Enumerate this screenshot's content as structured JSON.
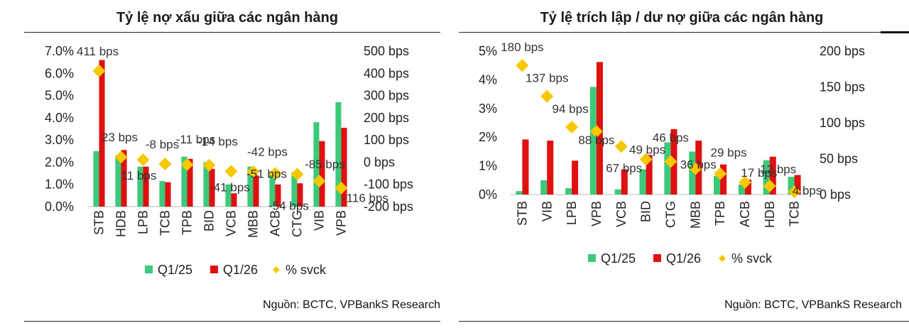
{
  "chart_data": [
    {
      "type": "bar",
      "title": "Tỷ lệ nợ xấu giữa các ngân hàng",
      "categories": [
        "STB",
        "HDB",
        "LPB",
        "TCB",
        "TPB",
        "BID",
        "VCB",
        "MBB",
        "ACB",
        "CTG",
        "VIB",
        "VPB"
      ],
      "series": [
        {
          "name": "Q1/25",
          "color": "#3cc97a",
          "axis": "left",
          "values": [
            2.5,
            2.3,
            1.8,
            1.15,
            2.25,
            2.0,
            1.0,
            1.8,
            1.55,
            1.55,
            3.8,
            4.7
          ]
        },
        {
          "name": "Q1/26",
          "color": "#e01010",
          "axis": "left",
          "values": [
            6.6,
            2.55,
            1.8,
            1.1,
            2.15,
            1.7,
            0.6,
            1.4,
            1.0,
            1.05,
            2.95,
            3.55
          ]
        },
        {
          "name": "% svck",
          "color": "#f5c800",
          "axis": "right",
          "marker": "diamond",
          "values": [
            411,
            23,
            11,
            -8,
            -11,
            -14,
            -41,
            -42,
            -51,
            -54,
            -85,
            -116
          ]
        }
      ],
      "data_labels": [
        "411 bps",
        "23 bps",
        "11 bps",
        "-8 bps",
        "-11 bps",
        "-14 bps",
        "-41 bps",
        "-42 bps",
        "-51 bps",
        "-54 bps",
        "-85 bps",
        "-116 bps"
      ],
      "ylim_left": [
        0,
        7
      ],
      "yticks_left": [
        "0.0%",
        "1.0%",
        "2.0%",
        "3.0%",
        "4.0%",
        "5.0%",
        "6.0%",
        "7.0%"
      ],
      "ylim_right": [
        -200,
        500
      ],
      "yticks_right": [
        "-200 bps",
        "-100 bps",
        "0 bps",
        "100 bps",
        "200 bps",
        "300 bps",
        "400 bps",
        "500 bps"
      ],
      "legend_position": "bottom",
      "source": "Nguồn: BCTC, VPBankS Research"
    },
    {
      "type": "bar",
      "title": "Tỷ lệ trích lập / dư nợ giữa các ngân hàng",
      "categories": [
        "STB",
        "VIB",
        "LPB",
        "VPB",
        "VCB",
        "BID",
        "CTG",
        "MBB",
        "TPB",
        "ACB",
        "HDB",
        "TCB"
      ],
      "series": [
        {
          "name": "Q1/25",
          "color": "#3cc97a",
          "axis": "left",
          "values": [
            0.12,
            0.5,
            0.22,
            3.75,
            0.18,
            0.88,
            1.82,
            1.5,
            0.65,
            0.35,
            1.2,
            0.62
          ]
        },
        {
          "name": "Q1/26",
          "color": "#e01010",
          "axis": "left",
          "values": [
            1.92,
            1.88,
            1.18,
            4.62,
            0.88,
            1.38,
            2.28,
            1.88,
            1.05,
            0.52,
            1.32,
            0.68
          ]
        },
        {
          "name": "% svck",
          "color": "#f5c800",
          "axis": "right",
          "marker": "diamond",
          "values": [
            180,
            137,
            94,
            88,
            67,
            49,
            46,
            36,
            29,
            17,
            12,
            4
          ]
        }
      ],
      "data_labels": [
        "180 bps",
        "137 bps",
        "94 bps",
        "88 bps",
        "67 bps",
        "49 bps",
        "46 bps",
        "36 bps",
        "29 bps",
        "17 bps",
        "12 bps",
        "4 bps"
      ],
      "ylim_left": [
        0,
        5
      ],
      "yticks_left": [
        "0%",
        "1%",
        "2%",
        "3%",
        "4%",
        "5%"
      ],
      "ylim_right": [
        0,
        200
      ],
      "yticks_right": [
        "0 bps",
        "50 bps",
        "100 bps",
        "150 bps",
        "200 bps"
      ],
      "legend_position": "bottom",
      "source": "Nguồn: BCTC, VPBankS Research"
    }
  ]
}
